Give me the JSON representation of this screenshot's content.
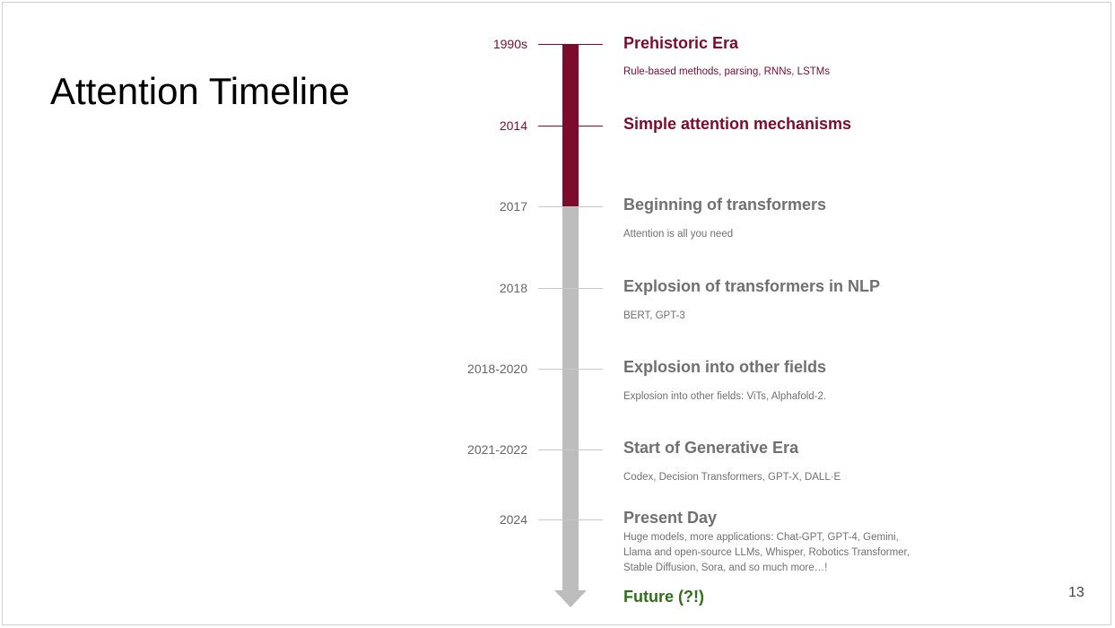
{
  "slide": {
    "title": "Attention Timeline",
    "page_number": "13"
  },
  "timeline": [
    {
      "year": "1990s",
      "title": "Prehistoric Era",
      "description": "Rule-based methods, parsing, RNNs, LSTMs",
      "highlighted": true
    },
    {
      "year": "2014",
      "title": "Simple attention mechanisms",
      "description": "",
      "highlighted": true
    },
    {
      "year": "2017",
      "title": "Beginning of transformers",
      "description": "Attention is all you need",
      "highlighted": false
    },
    {
      "year": "2018",
      "title": "Explosion of transformers in NLP",
      "description": "BERT, GPT-3",
      "highlighted": false
    },
    {
      "year": "2018-2020",
      "title": "Explosion into other fields",
      "description": "Explosion into other fields: ViTs, Alphafold-2.",
      "highlighted": false
    },
    {
      "year": "2021-2022",
      "title": "Start of Generative Era",
      "description": "Codex, Decision Transformers, GPT-X,  DALL·E",
      "highlighted": false
    },
    {
      "year": "2024",
      "title": "Present Day",
      "description": "Huge models, more applications: Chat-GPT, GPT-4, Gemini, Llama and open-source LLMs, Whisper, Robotics Transformer, Stable Diffusion, Sora, and so much more…!",
      "highlighted": false
    }
  ],
  "future": {
    "title": "Future (?!)"
  },
  "colors": {
    "accent": "#7b0c2e",
    "muted": "#707070",
    "bar": "#bdbdbd",
    "future": "#2f6f1a"
  }
}
